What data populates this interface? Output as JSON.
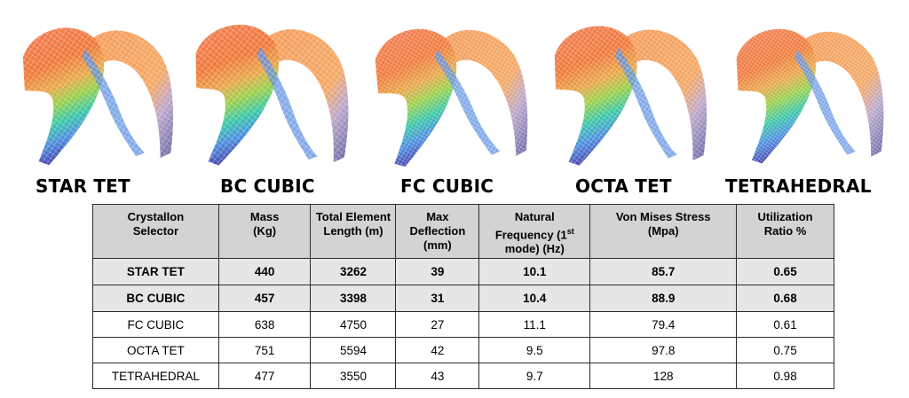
{
  "shells": [
    {
      "label": "STAR TET"
    },
    {
      "label": "BC CUBIC"
    },
    {
      "label": "FC CUBIC"
    },
    {
      "label": "OCTA TET"
    },
    {
      "label": "TETRAHEDRAL"
    }
  ],
  "table": {
    "headers": {
      "selector": "Crystallon Selector",
      "mass": "Mass (Kg)",
      "length": "Total Element Length (m)",
      "deflection": "Max Deflection (mm)",
      "freq_pre": "Natural Frequency (1",
      "freq_sup": "st",
      "freq_post": " mode) (Hz)",
      "stress": "Von Mises Stress (Mpa)",
      "util": "Utilization Ratio %"
    },
    "rows": [
      {
        "selector": "STAR TET",
        "mass": "440",
        "length": "3262",
        "deflection": "39",
        "freq": "10.1",
        "stress": "85.7",
        "util": "0.65"
      },
      {
        "selector": "BC CUBIC",
        "mass": "457",
        "length": "3398",
        "deflection": "31",
        "freq": "10.4",
        "stress": "88.9",
        "util": "0.68"
      },
      {
        "selector": "FC CUBIC",
        "mass": "638",
        "length": "4750",
        "deflection": "27",
        "freq": "11.1",
        "stress": "79.4",
        "util": "0.61"
      },
      {
        "selector": "OCTA TET",
        "mass": "751",
        "length": "5594",
        "deflection": "42",
        "freq": "9.5",
        "stress": "97.8",
        "util": "0.75"
      },
      {
        "selector": "TETRAHEDRAL",
        "mass": "477",
        "length": "3550",
        "deflection": "43",
        "freq": "9.7",
        "stress": "128",
        "util": "0.98"
      }
    ]
  },
  "colors": {
    "header_bg": "#d3d3d3",
    "highlight_bg": "#e6e6e6",
    "border": "#2b2b2b"
  }
}
